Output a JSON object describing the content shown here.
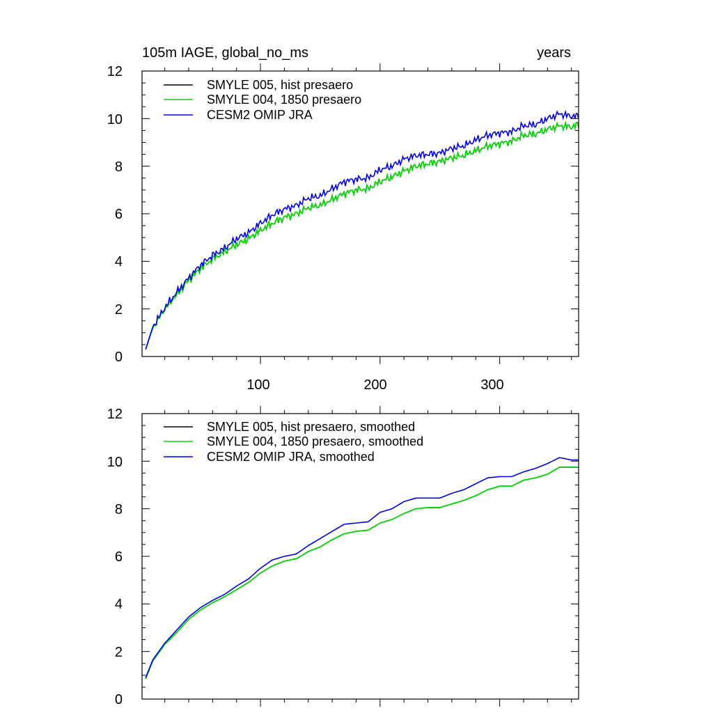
{
  "chart_data": [
    {
      "type": "line",
      "title": "105m IAGE, global_no_ms",
      "title_right": "years",
      "xlim": [
        1,
        366
      ],
      "ylim": [
        0,
        12
      ],
      "yticks": [
        0,
        2,
        4,
        6,
        8,
        10,
        12
      ],
      "ytick_labels": [
        "0",
        "2",
        "4",
        "6",
        "8",
        "10",
        "12"
      ],
      "xticks": [
        100,
        200,
        300
      ],
      "xtick_labels": [
        "100",
        "200",
        "300"
      ],
      "legend_position": "top-left",
      "series": [
        {
          "name": "SMYLE 005, hist presaero",
          "color": "#000000",
          "x": [
            4,
            10,
            20,
            30,
            40,
            50,
            60,
            70,
            80,
            90,
            100,
            110,
            120,
            130,
            140,
            150,
            160,
            170,
            180,
            190,
            200,
            210,
            220,
            230,
            240,
            250,
            260,
            270,
            280,
            290,
            300,
            310,
            320,
            330,
            340,
            350,
            360,
            366
          ],
          "values": [
            0.3,
            1.2,
            2.0,
            2.6,
            3.2,
            3.7,
            4.1,
            4.4,
            4.7,
            4.95,
            5.3,
            5.6,
            5.85,
            6.0,
            6.25,
            6.35,
            6.6,
            6.85,
            7.0,
            7.05,
            7.35,
            7.55,
            7.8,
            8.0,
            8.1,
            8.2,
            8.35,
            8.45,
            8.65,
            8.85,
            8.95,
            9.05,
            9.3,
            9.35,
            9.55,
            9.7,
            9.65,
            9.75
          ]
        },
        {
          "name": "SMYLE 004, 1850 presaero",
          "color": "#00dd00",
          "x": [
            4,
            10,
            20,
            30,
            40,
            50,
            60,
            70,
            80,
            90,
            100,
            110,
            120,
            130,
            140,
            150,
            160,
            170,
            180,
            190,
            200,
            210,
            220,
            230,
            240,
            250,
            260,
            270,
            280,
            290,
            300,
            310,
            320,
            330,
            340,
            350,
            360,
            366
          ],
          "values": [
            0.3,
            1.2,
            2.0,
            2.6,
            3.2,
            3.7,
            4.1,
            4.4,
            4.7,
            4.95,
            5.3,
            5.6,
            5.85,
            6.0,
            6.25,
            6.35,
            6.6,
            6.85,
            7.0,
            7.05,
            7.35,
            7.55,
            7.8,
            8.0,
            8.1,
            8.2,
            8.35,
            8.45,
            8.65,
            8.85,
            8.95,
            9.05,
            9.3,
            9.35,
            9.55,
            9.7,
            9.65,
            9.75
          ]
        },
        {
          "name": "CESM2 OMIP JRA",
          "color": "#0000dd",
          "x": [
            4,
            10,
            20,
            30,
            40,
            50,
            60,
            70,
            80,
            90,
            100,
            110,
            120,
            130,
            140,
            150,
            160,
            170,
            180,
            190,
            200,
            210,
            220,
            230,
            240,
            250,
            260,
            270,
            280,
            290,
            300,
            310,
            320,
            330,
            340,
            350,
            360,
            366
          ],
          "values": [
            0.3,
            1.25,
            2.05,
            2.7,
            3.3,
            3.85,
            4.25,
            4.55,
            4.95,
            5.2,
            5.6,
            5.95,
            6.2,
            6.35,
            6.65,
            6.75,
            7.05,
            7.35,
            7.45,
            7.5,
            7.85,
            8.0,
            8.3,
            8.45,
            8.5,
            8.55,
            8.75,
            8.85,
            9.1,
            9.3,
            9.4,
            9.45,
            9.7,
            9.75,
            10.0,
            10.2,
            10.1,
            10.1
          ]
        }
      ]
    },
    {
      "type": "line",
      "xlim": [
        1,
        366
      ],
      "ylim": [
        0,
        12
      ],
      "yticks": [
        0,
        2,
        4,
        6,
        8,
        10,
        12
      ],
      "ytick_labels": [
        "0",
        "2",
        "4",
        "6",
        "8",
        "10",
        "12"
      ],
      "xticks": [
        100,
        200,
        300
      ],
      "legend_position": "top-left",
      "series": [
        {
          "name": "SMYLE 005, hist presaero, smoothed",
          "color": "#000000",
          "x": [
            4,
            10,
            20,
            30,
            40,
            50,
            60,
            70,
            80,
            90,
            100,
            110,
            120,
            130,
            140,
            150,
            160,
            170,
            180,
            190,
            200,
            210,
            220,
            230,
            240,
            250,
            260,
            270,
            280,
            290,
            300,
            310,
            320,
            330,
            340,
            350,
            360,
            366
          ],
          "values": [
            0.85,
            1.6,
            2.3,
            2.8,
            3.35,
            3.75,
            4.05,
            4.3,
            4.6,
            4.9,
            5.3,
            5.6,
            5.8,
            5.9,
            6.2,
            6.4,
            6.7,
            6.95,
            7.05,
            7.1,
            7.4,
            7.55,
            7.8,
            8.0,
            8.05,
            8.05,
            8.2,
            8.35,
            8.55,
            8.8,
            8.95,
            8.95,
            9.2,
            9.3,
            9.45,
            9.75,
            9.75,
            9.75
          ]
        },
        {
          "name": "SMYLE 004, 1850 presaero, smoothed",
          "color": "#00dd00",
          "x": [
            4,
            10,
            20,
            30,
            40,
            50,
            60,
            70,
            80,
            90,
            100,
            110,
            120,
            130,
            140,
            150,
            160,
            170,
            180,
            190,
            200,
            210,
            220,
            230,
            240,
            250,
            260,
            270,
            280,
            290,
            300,
            310,
            320,
            330,
            340,
            350,
            360,
            366
          ],
          "values": [
            0.85,
            1.6,
            2.3,
            2.8,
            3.35,
            3.75,
            4.05,
            4.3,
            4.6,
            4.9,
            5.3,
            5.6,
            5.8,
            5.9,
            6.2,
            6.4,
            6.7,
            6.95,
            7.05,
            7.1,
            7.4,
            7.55,
            7.8,
            8.0,
            8.05,
            8.05,
            8.2,
            8.35,
            8.55,
            8.8,
            8.95,
            8.95,
            9.2,
            9.3,
            9.45,
            9.75,
            9.75,
            9.75
          ]
        },
        {
          "name": "CESM2 OMIP JRA, smoothed",
          "color": "#0000dd",
          "x": [
            4,
            10,
            20,
            30,
            40,
            50,
            60,
            70,
            80,
            90,
            100,
            110,
            120,
            130,
            140,
            150,
            160,
            170,
            180,
            190,
            200,
            210,
            220,
            230,
            240,
            250,
            260,
            270,
            280,
            290,
            300,
            310,
            320,
            330,
            340,
            350,
            360,
            366
          ],
          "values": [
            0.9,
            1.65,
            2.35,
            2.9,
            3.45,
            3.85,
            4.15,
            4.4,
            4.75,
            5.05,
            5.5,
            5.85,
            6.0,
            6.1,
            6.45,
            6.75,
            7.05,
            7.35,
            7.4,
            7.45,
            7.85,
            8.0,
            8.3,
            8.45,
            8.45,
            8.45,
            8.65,
            8.8,
            9.05,
            9.3,
            9.35,
            9.35,
            9.55,
            9.7,
            9.9,
            10.15,
            10.05,
            10.05
          ]
        }
      ]
    }
  ]
}
